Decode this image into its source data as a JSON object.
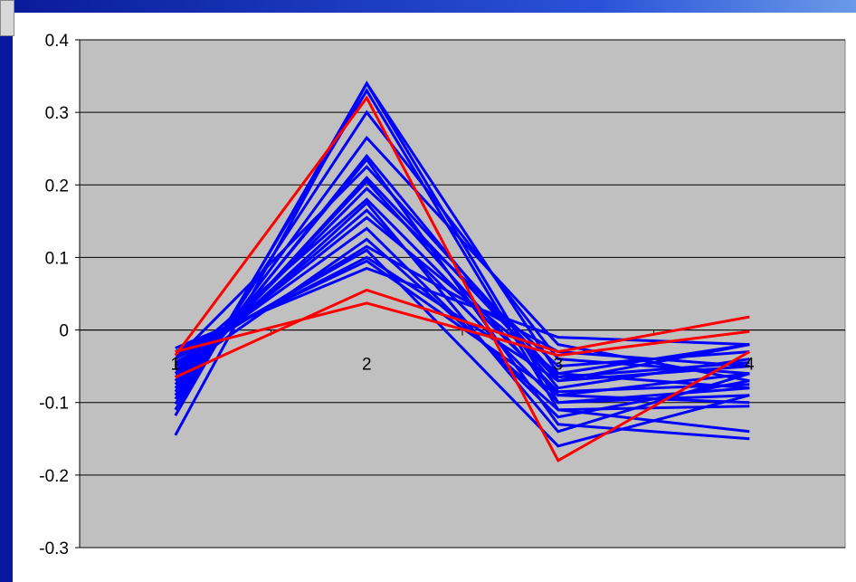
{
  "chart_data": {
    "type": "line",
    "title": "",
    "xlabel": "",
    "ylabel": "",
    "categories": [
      "1",
      "2",
      "3",
      "4"
    ],
    "ylim": [
      -0.3,
      0.4
    ],
    "yticks": [
      "0.4",
      "0.3",
      "0.2",
      "0.1",
      "0",
      "-0.1",
      "-0.2",
      "-0.3"
    ],
    "grid": true,
    "legend": "none",
    "plot_background": "#c0c0c0",
    "colors": {
      "primary": "#0000ff",
      "highlight": "#ff0000"
    },
    "series": [
      {
        "color": "#0000ff",
        "values": [
          -0.145,
          0.34,
          -0.1,
          -0.09
        ]
      },
      {
        "color": "#0000ff",
        "values": [
          -0.118,
          0.34,
          -0.06,
          -0.08
        ]
      },
      {
        "color": "#0000ff",
        "values": [
          -0.11,
          0.33,
          -0.11,
          -0.14
        ]
      },
      {
        "color": "#0000ff",
        "values": [
          -0.102,
          0.3,
          -0.04,
          -0.06
        ]
      },
      {
        "color": "#0000ff",
        "values": [
          -0.095,
          0.265,
          -0.02,
          -0.07
        ]
      },
      {
        "color": "#0000ff",
        "values": [
          -0.09,
          0.24,
          -0.08,
          -0.04
        ]
      },
      {
        "color": "#0000ff",
        "values": [
          -0.085,
          0.235,
          -0.13,
          -0.15
        ]
      },
      {
        "color": "#0000ff",
        "values": [
          -0.08,
          0.21,
          -0.07,
          -0.05
        ]
      },
      {
        "color": "#0000ff",
        "values": [
          -0.075,
          0.205,
          -0.09,
          -0.1
        ]
      },
      {
        "color": "#0000ff",
        "values": [
          -0.07,
          0.195,
          -0.05,
          -0.03
        ]
      },
      {
        "color": "#0000ff",
        "values": [
          -0.065,
          0.175,
          -0.14,
          -0.06
        ]
      },
      {
        "color": "#0000ff",
        "values": [
          -0.06,
          0.165,
          -0.1,
          -0.08
        ]
      },
      {
        "color": "#0000ff",
        "values": [
          -0.055,
          0.155,
          -0.06,
          -0.02
        ]
      },
      {
        "color": "#0000ff",
        "values": [
          -0.05,
          0.14,
          -0.12,
          -0.07
        ]
      },
      {
        "color": "#0000ff",
        "values": [
          -0.045,
          0.115,
          -0.03,
          -0.05
        ]
      },
      {
        "color": "#0000ff",
        "values": [
          -0.04,
          0.11,
          -0.16,
          -0.09
        ]
      },
      {
        "color": "#0000ff",
        "values": [
          -0.035,
          0.1,
          -0.07,
          -0.02
        ]
      },
      {
        "color": "#0000ff",
        "values": [
          -0.03,
          0.095,
          -0.09,
          -0.06
        ]
      },
      {
        "color": "#0000ff",
        "values": [
          -0.025,
          0.085,
          -0.01,
          -0.02
        ]
      },
      {
        "color": "#0000ff",
        "values": [
          -0.06,
          0.125,
          -0.11,
          -0.105
        ]
      },
      {
        "color": "#0000ff",
        "values": [
          -0.05,
          0.18,
          -0.085,
          -0.075
        ]
      },
      {
        "color": "#0000ff",
        "values": [
          -0.04,
          0.225,
          -0.065,
          -0.045
        ]
      },
      {
        "color": "#ff0000",
        "values": [
          -0.035,
          0.32,
          -0.18,
          -0.03
        ]
      },
      {
        "color": "#ff0000",
        "values": [
          -0.065,
          0.055,
          -0.03,
          0.018
        ]
      },
      {
        "color": "#ff0000",
        "values": [
          -0.03,
          0.037,
          -0.035,
          -0.002
        ]
      }
    ]
  }
}
